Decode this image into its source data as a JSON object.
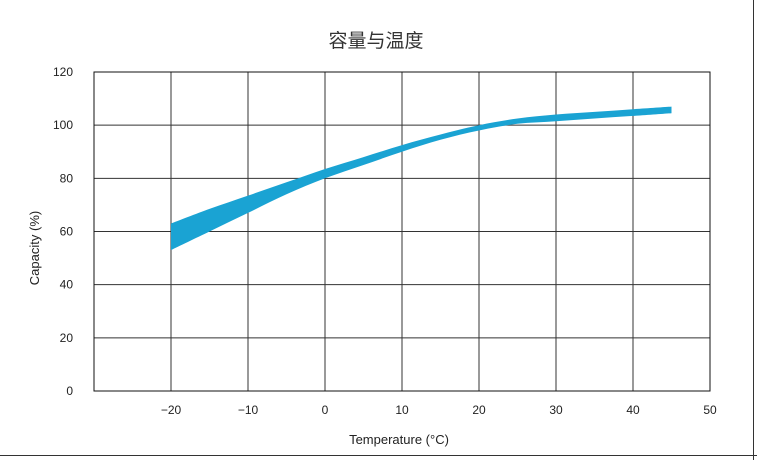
{
  "chart_data": {
    "type": "area",
    "title": "容量与温度",
    "xlabel": "Temperature (°C)",
    "ylabel": "Capacity (%)",
    "xlim": [
      -30,
      50
    ],
    "ylim": [
      0,
      120
    ],
    "x_ticks": [
      -20,
      -10,
      0,
      10,
      20,
      30,
      40,
      50
    ],
    "y_ticks": [
      0,
      20,
      40,
      60,
      80,
      100,
      120
    ],
    "grid": true,
    "legend": "none",
    "series": [
      {
        "x": [
          -20,
          -15,
          -10,
          -5,
          0,
          5,
          10,
          15,
          20,
          25,
          30,
          35,
          40,
          45
        ],
        "upper": [
          63,
          68.5,
          73.5,
          78.5,
          83.5,
          88,
          92.5,
          96.5,
          100,
          102.5,
          104,
          105,
          106,
          107
        ],
        "lower": [
          53,
          60,
          67,
          74,
          80,
          85,
          90,
          94.5,
          98,
          100.5,
          101.5,
          102.5,
          103.5,
          104.5
        ]
      }
    ],
    "colors": {
      "band": "#1aa3d3",
      "grid": "#333333",
      "frame": "#111111"
    }
  }
}
